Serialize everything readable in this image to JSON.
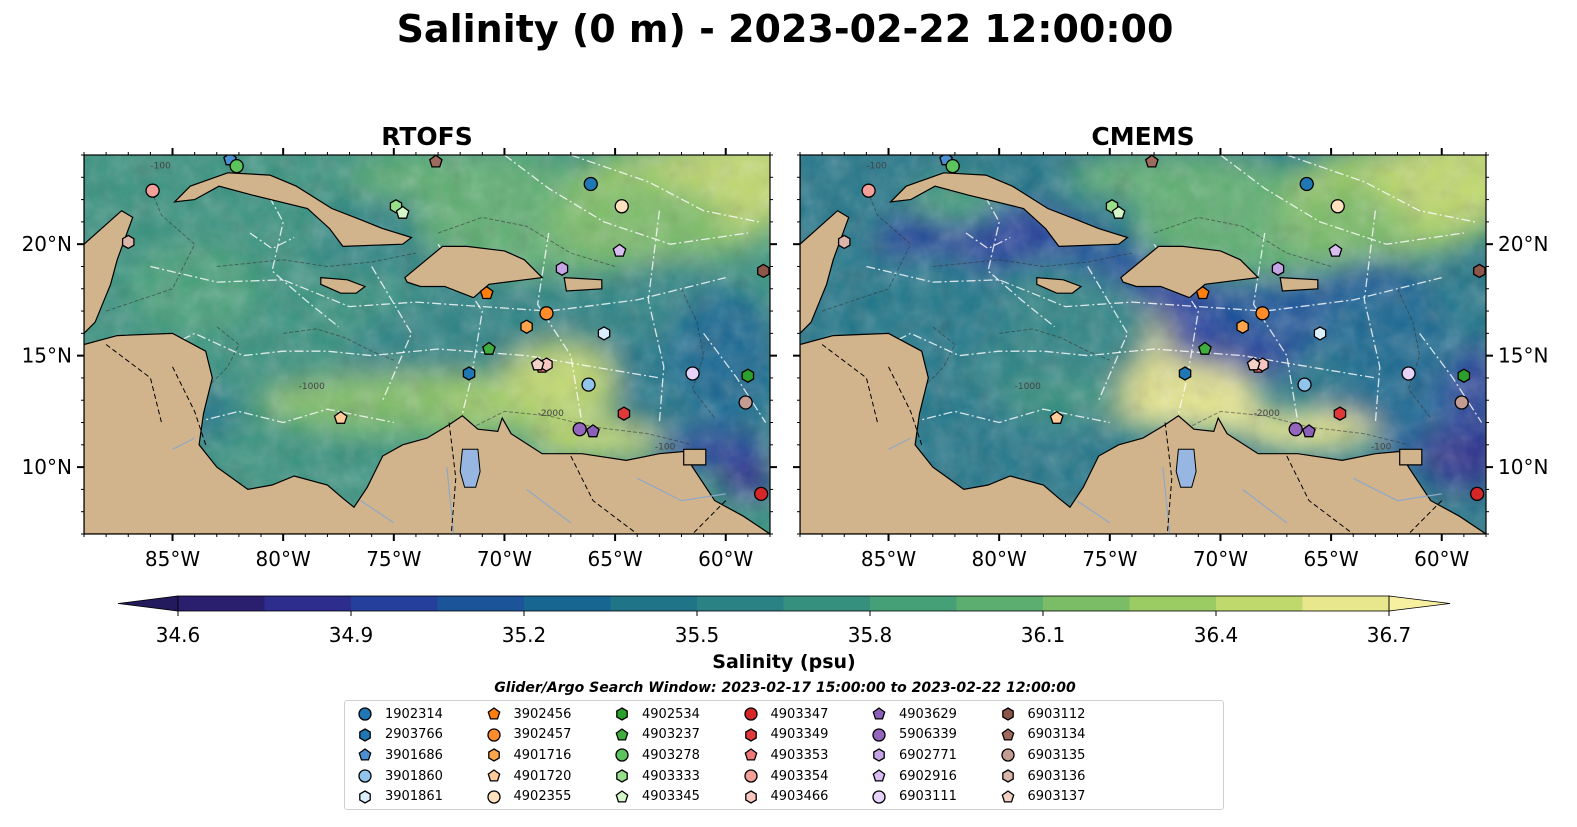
{
  "title": "Salinity (0 m) - 2023-02-22 12:00:00",
  "panels": [
    {
      "title": "RTOFS",
      "contour_labels": [
        "-100",
        "-1000",
        "-2000",
        "-100"
      ]
    },
    {
      "title": "CMEMS",
      "contour_labels": [
        "-100",
        "-1000",
        "-2000",
        "-100"
      ]
    }
  ],
  "axes": {
    "lon_ticks": [
      "85°W",
      "80°W",
      "75°W",
      "70°W",
      "65°W",
      "60°W"
    ],
    "lon_values": [
      -85,
      -80,
      -75,
      -70,
      -65,
      -60
    ],
    "lat_ticks": [
      "20°N",
      "15°N",
      "10°N"
    ],
    "lat_values": [
      20,
      15,
      10
    ],
    "lon_range": [
      -89,
      -58
    ],
    "lat_range": [
      7,
      24
    ]
  },
  "colorbar": {
    "label": "Salinity (psu)",
    "ticks": [
      "34.6",
      "34.9",
      "35.2",
      "35.5",
      "35.8",
      "36.1",
      "36.4",
      "36.7"
    ],
    "range": [
      34.6,
      36.7
    ],
    "extend": "both",
    "colors": [
      "#2a1f6e",
      "#2c2d8c",
      "#253f9c",
      "#1c549a",
      "#166691",
      "#1f7488",
      "#2b8284",
      "#35917e",
      "#45a078",
      "#5cae70",
      "#7abd66",
      "#9bcb63",
      "#c0d96c",
      "#e8e78d"
    ]
  },
  "search_window": "Glider/Argo Search Window: 2023-02-17 15:00:00 to 2023-02-22 12:00:00",
  "colors": {
    "land": "#d2b48c",
    "lake": "#97b6e1",
    "ocean_deep": "#2a1e6a"
  },
  "floats": [
    {
      "id": "1902314",
      "marker": "circle",
      "color": "#1f77b4",
      "lon": -66.1,
      "lat": 22.7
    },
    {
      "id": "2903766",
      "marker": "hexagon",
      "color": "#1f77b4",
      "lon": -71.6,
      "lat": 14.2
    },
    {
      "id": "3901686",
      "marker": "pentagon",
      "color": "#4a8fd0",
      "lon": -82.4,
      "lat": 23.8
    },
    {
      "id": "3901860",
      "marker": "circle",
      "color": "#92c5ec",
      "lon": -66.2,
      "lat": 13.7
    },
    {
      "id": "3901861",
      "marker": "hexagon",
      "color": "#dbeefb",
      "lon": -65.5,
      "lat": 16.0
    },
    {
      "id": "3902456",
      "marker": "pentagon",
      "color": "#ff7f0e",
      "lon": -70.8,
      "lat": 17.8
    },
    {
      "id": "3902457",
      "marker": "circle",
      "color": "#ff8c2a",
      "lon": -68.1,
      "lat": 16.9
    },
    {
      "id": "4901716",
      "marker": "hexagon",
      "color": "#ffa64d",
      "lon": -69.0,
      "lat": 16.3
    },
    {
      "id": "4901720",
      "marker": "pentagon",
      "color": "#ffcc99",
      "lon": -77.4,
      "lat": 12.2
    },
    {
      "id": "4902355",
      "marker": "circle",
      "color": "#ffe1bd",
      "lon": -64.7,
      "lat": 21.7
    },
    {
      "id": "4902534",
      "marker": "hexagon",
      "color": "#2ca02c",
      "lon": -59.0,
      "lat": 14.1
    },
    {
      "id": "4903237",
      "marker": "pentagon",
      "color": "#3fae3f",
      "lon": -70.7,
      "lat": 15.3
    },
    {
      "id": "4903278",
      "marker": "circle",
      "color": "#5cc45c",
      "lon": -82.1,
      "lat": 23.5
    },
    {
      "id": "4903333",
      "marker": "hexagon",
      "color": "#98df8a",
      "lon": -74.9,
      "lat": 21.7
    },
    {
      "id": "4903345",
      "marker": "pentagon",
      "color": "#d4f7c9",
      "lon": -74.6,
      "lat": 21.4
    },
    {
      "id": "4903347",
      "marker": "circle",
      "color": "#d62728",
      "lon": -58.4,
      "lat": 8.8
    },
    {
      "id": "4903349",
      "marker": "hexagon",
      "color": "#e0393a",
      "lon": -64.6,
      "lat": 12.4
    },
    {
      "id": "4903353",
      "marker": "pentagon",
      "color": "#f07878",
      "lon": -68.3,
      "lat": 14.5
    },
    {
      "id": "4903354",
      "marker": "circle",
      "color": "#f4a09a",
      "lon": -85.9,
      "lat": 22.4
    },
    {
      "id": "4903466",
      "marker": "hexagon",
      "color": "#f8c6c0",
      "lon": -68.1,
      "lat": 14.6
    },
    {
      "id": "4903629",
      "marker": "pentagon",
      "color": "#8a60b8",
      "lon": -66.0,
      "lat": 11.6
    },
    {
      "id": "5906339",
      "marker": "circle",
      "color": "#9467bd",
      "lon": -66.6,
      "lat": 11.7
    },
    {
      "id": "6902771",
      "marker": "hexagon",
      "color": "#c5a5e6",
      "lon": -67.4,
      "lat": 18.9
    },
    {
      "id": "6902916",
      "marker": "pentagon",
      "color": "#d8bdf0",
      "lon": -64.8,
      "lat": 19.7
    },
    {
      "id": "6903111",
      "marker": "circle",
      "color": "#e6d3f7",
      "lon": -61.5,
      "lat": 14.2
    },
    {
      "id": "6903112",
      "marker": "hexagon",
      "color": "#8c564b",
      "lon": -58.3,
      "lat": 18.8
    },
    {
      "id": "6903134",
      "marker": "pentagon",
      "color": "#9e6a5d",
      "lon": -73.1,
      "lat": 23.7
    },
    {
      "id": "6903135",
      "marker": "circle",
      "color": "#c49c94",
      "lon": -59.1,
      "lat": 12.9
    },
    {
      "id": "6903136",
      "marker": "hexagon",
      "color": "#dcb5aa",
      "lon": -87.0,
      "lat": 20.1
    },
    {
      "id": "6903137",
      "marker": "pentagon",
      "color": "#f2d2c6",
      "lon": -68.5,
      "lat": 14.6
    }
  ]
}
